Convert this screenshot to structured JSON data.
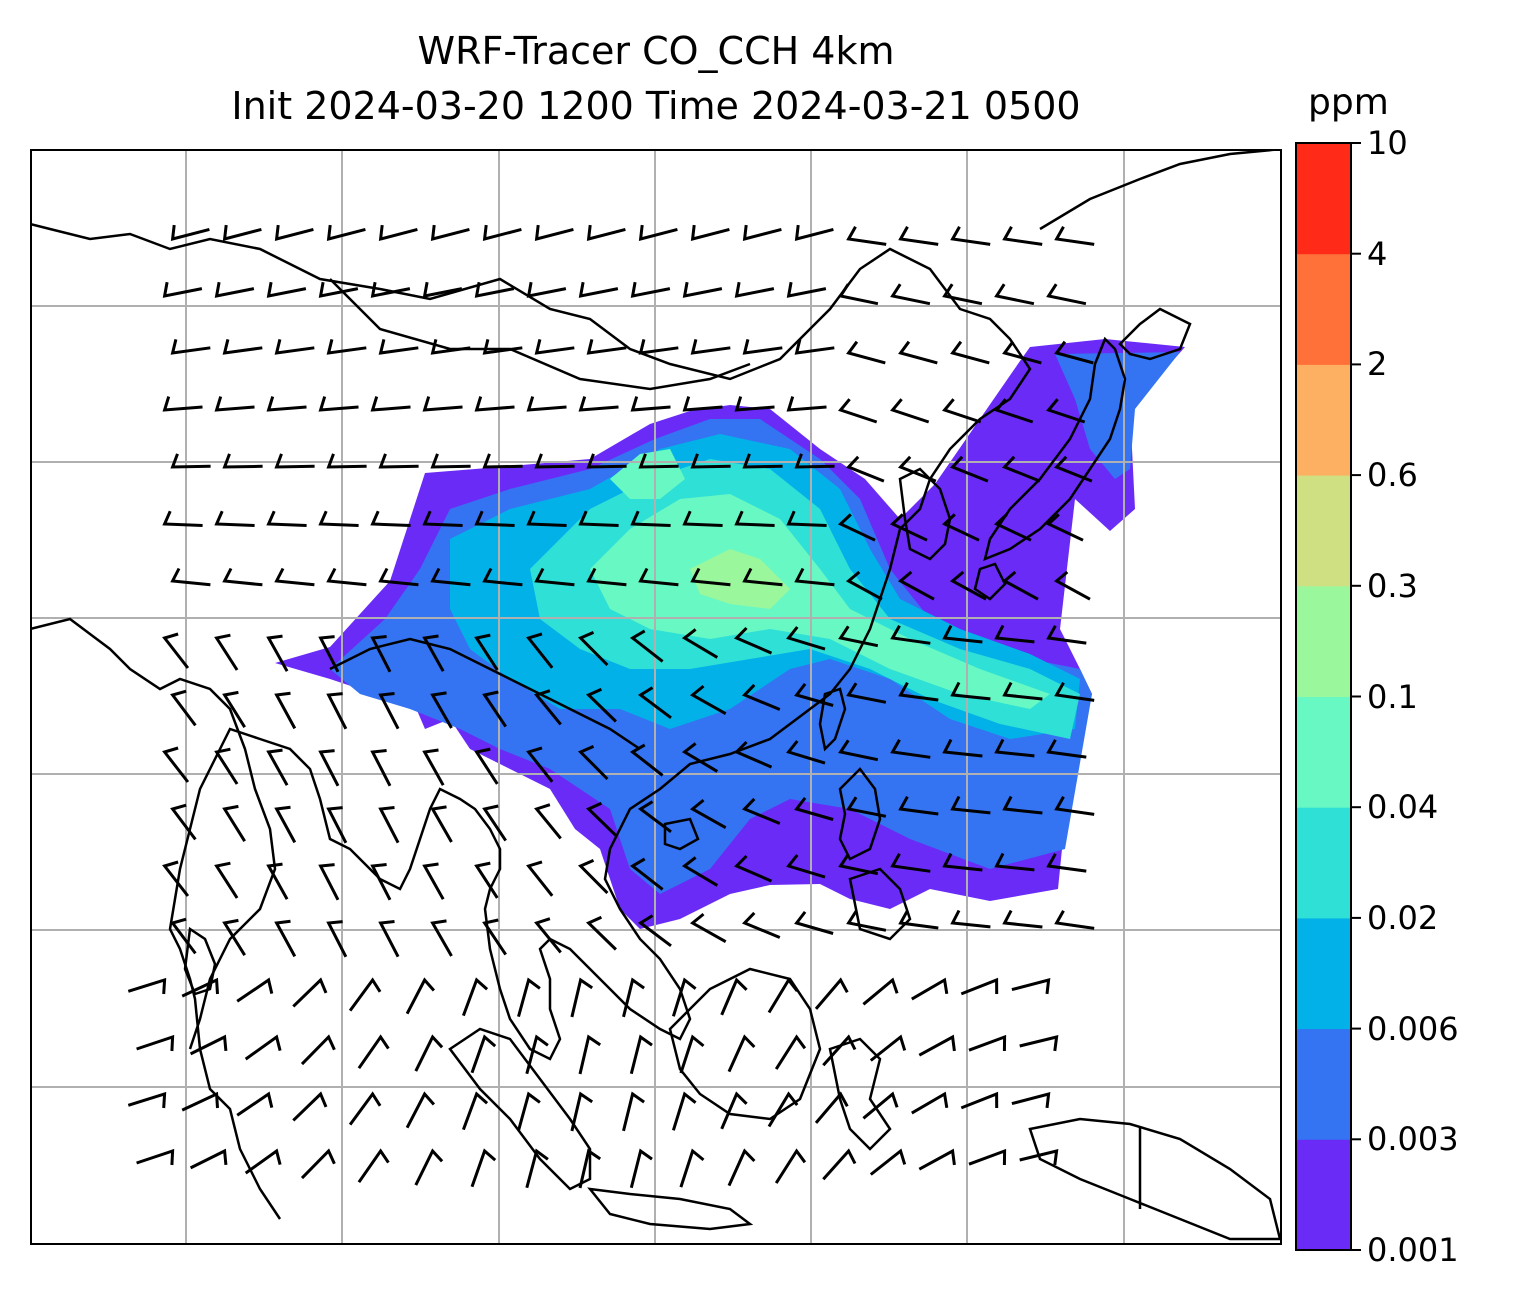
{
  "title": {
    "line1": "WRF-Tracer CO_CCH 4km",
    "line2": "Init 2024-03-20 1200 Time 2024-03-21 0500"
  },
  "colorbar": {
    "unit": "ppm",
    "levels": [
      "0.001",
      "0.003",
      "0.006",
      "0.02",
      "0.04",
      "0.1",
      "0.3",
      "0.6",
      "2",
      "4",
      "10"
    ],
    "colors": [
      "#6a2bf7",
      "#3473f2",
      "#03b1e9",
      "#2ee0d5",
      "#68f8c4",
      "#9bf79b",
      "#cfe083",
      "#fdb061",
      "#ff7139",
      "#ff2a17"
    ]
  },
  "map": {
    "gridlines": true,
    "grid_color": "#b0b0b0",
    "coastline_color": "#000000",
    "barb_color": "#000000"
  }
}
